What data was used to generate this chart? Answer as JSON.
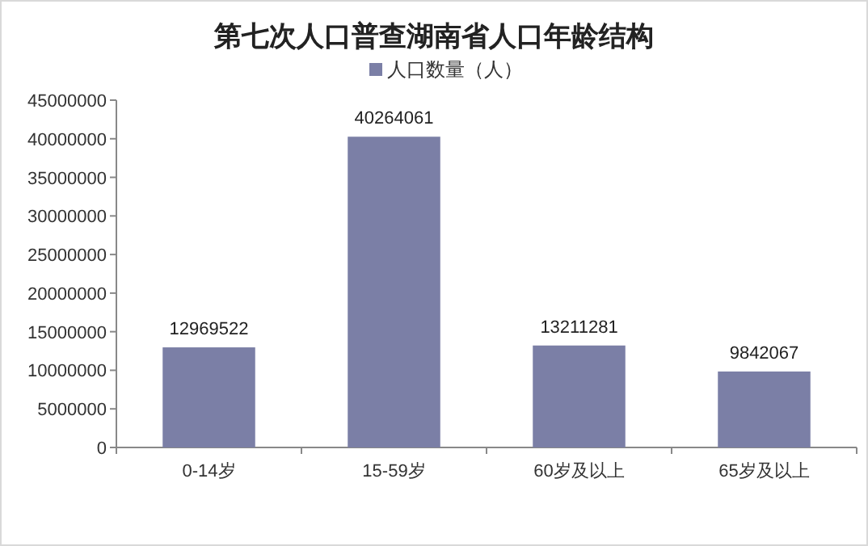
{
  "chart_data": {
    "type": "bar",
    "title": "第七次人口普查湖南省人口年龄结构",
    "categories": [
      "0-14岁",
      "15-59岁",
      "60岁及以上",
      "65岁及以上"
    ],
    "series": [
      {
        "name": "人口数量（人）",
        "color": "#7b7fa6",
        "values": [
          12969522,
          40264061,
          13211281,
          9842067
        ]
      }
    ],
    "ylim": [
      0,
      45000000
    ],
    "yticks": [
      0,
      5000000,
      10000000,
      15000000,
      20000000,
      25000000,
      30000000,
      35000000,
      40000000,
      45000000
    ],
    "data_labels": true,
    "legend": "top"
  }
}
